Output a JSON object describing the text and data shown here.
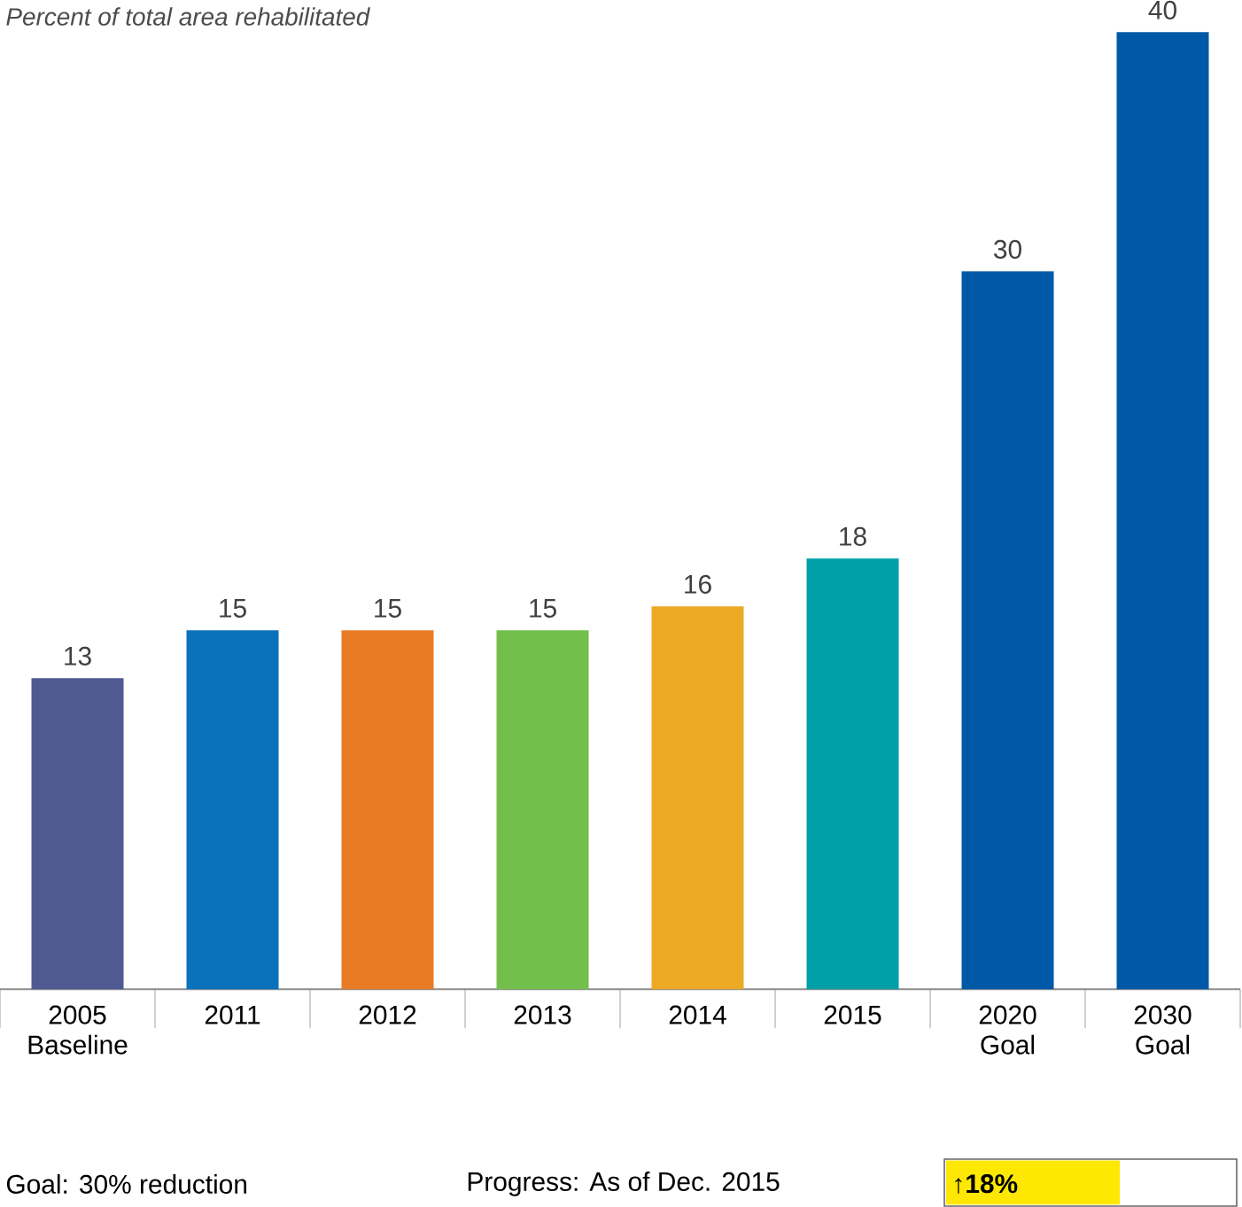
{
  "chart_data": {
    "type": "bar",
    "title": "Percent of total area rehabilitated",
    "categories": [
      "2005 Baseline",
      "2011",
      "2012",
      "2013",
      "2014",
      "2015",
      "2020 Goal",
      "2030 Goal"
    ],
    "values": [
      13,
      15,
      15,
      15,
      16,
      18,
      30,
      40
    ],
    "colors": [
      "#4f5a93",
      "#0a72bb",
      "#e87b24",
      "#72bf4b",
      "#eba924",
      "#00a0a8",
      "#0059a6",
      "#0059a6"
    ],
    "ylim": [
      0,
      40
    ],
    "data_labels": true,
    "tick_labels": "x",
    "annotations": [
      "Goal: 30% reduction",
      "Progress: As of Dec. 2015",
      "↑18%"
    ]
  }
}
